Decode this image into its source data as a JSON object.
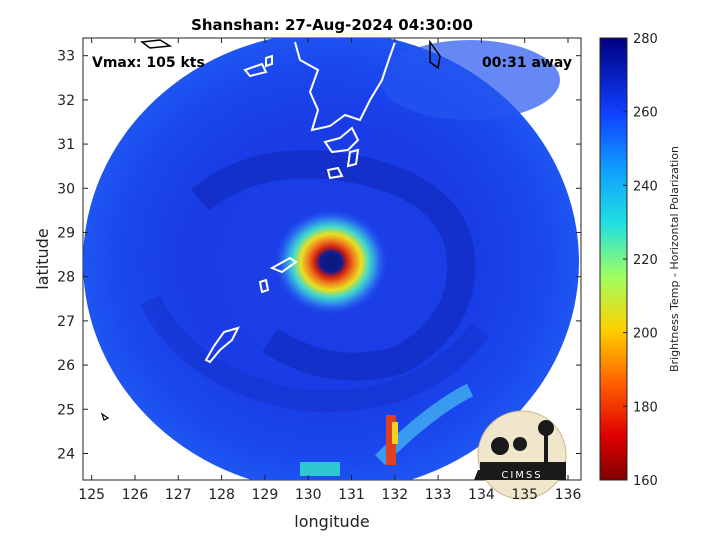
{
  "title": "Shanshan: 27-Aug-2024 04:30:00",
  "vmax_text": "Vmax: 105 kts",
  "time_offset_text": "00:31 away",
  "x_axis": {
    "label": "longitude",
    "range": [
      124.8,
      136.3
    ],
    "ticks": [
      125,
      126,
      127,
      128,
      129,
      130,
      131,
      132,
      133,
      134,
      135,
      136
    ]
  },
  "y_axis": {
    "label": "latitude",
    "range": [
      23.4,
      33.4
    ],
    "ticks": [
      24,
      25,
      26,
      27,
      28,
      29,
      30,
      31,
      32,
      33
    ]
  },
  "colorbar": {
    "label": "Brightness Temp - Horizontal Polarization",
    "range": [
      160,
      280
    ],
    "ticks": [
      160,
      180,
      200,
      220,
      240,
      260,
      280
    ]
  },
  "storm_center": {
    "lon": 130.5,
    "lat": 28.4
  },
  "logo_text": "CIMSS",
  "colors": {
    "background_scene": "#1a3de6",
    "dark_band": "#0d1a9e",
    "eyewall_warm": "#e0301a",
    "eyewall_yellow": "#f0e020",
    "cyan": "#20d0e0"
  }
}
